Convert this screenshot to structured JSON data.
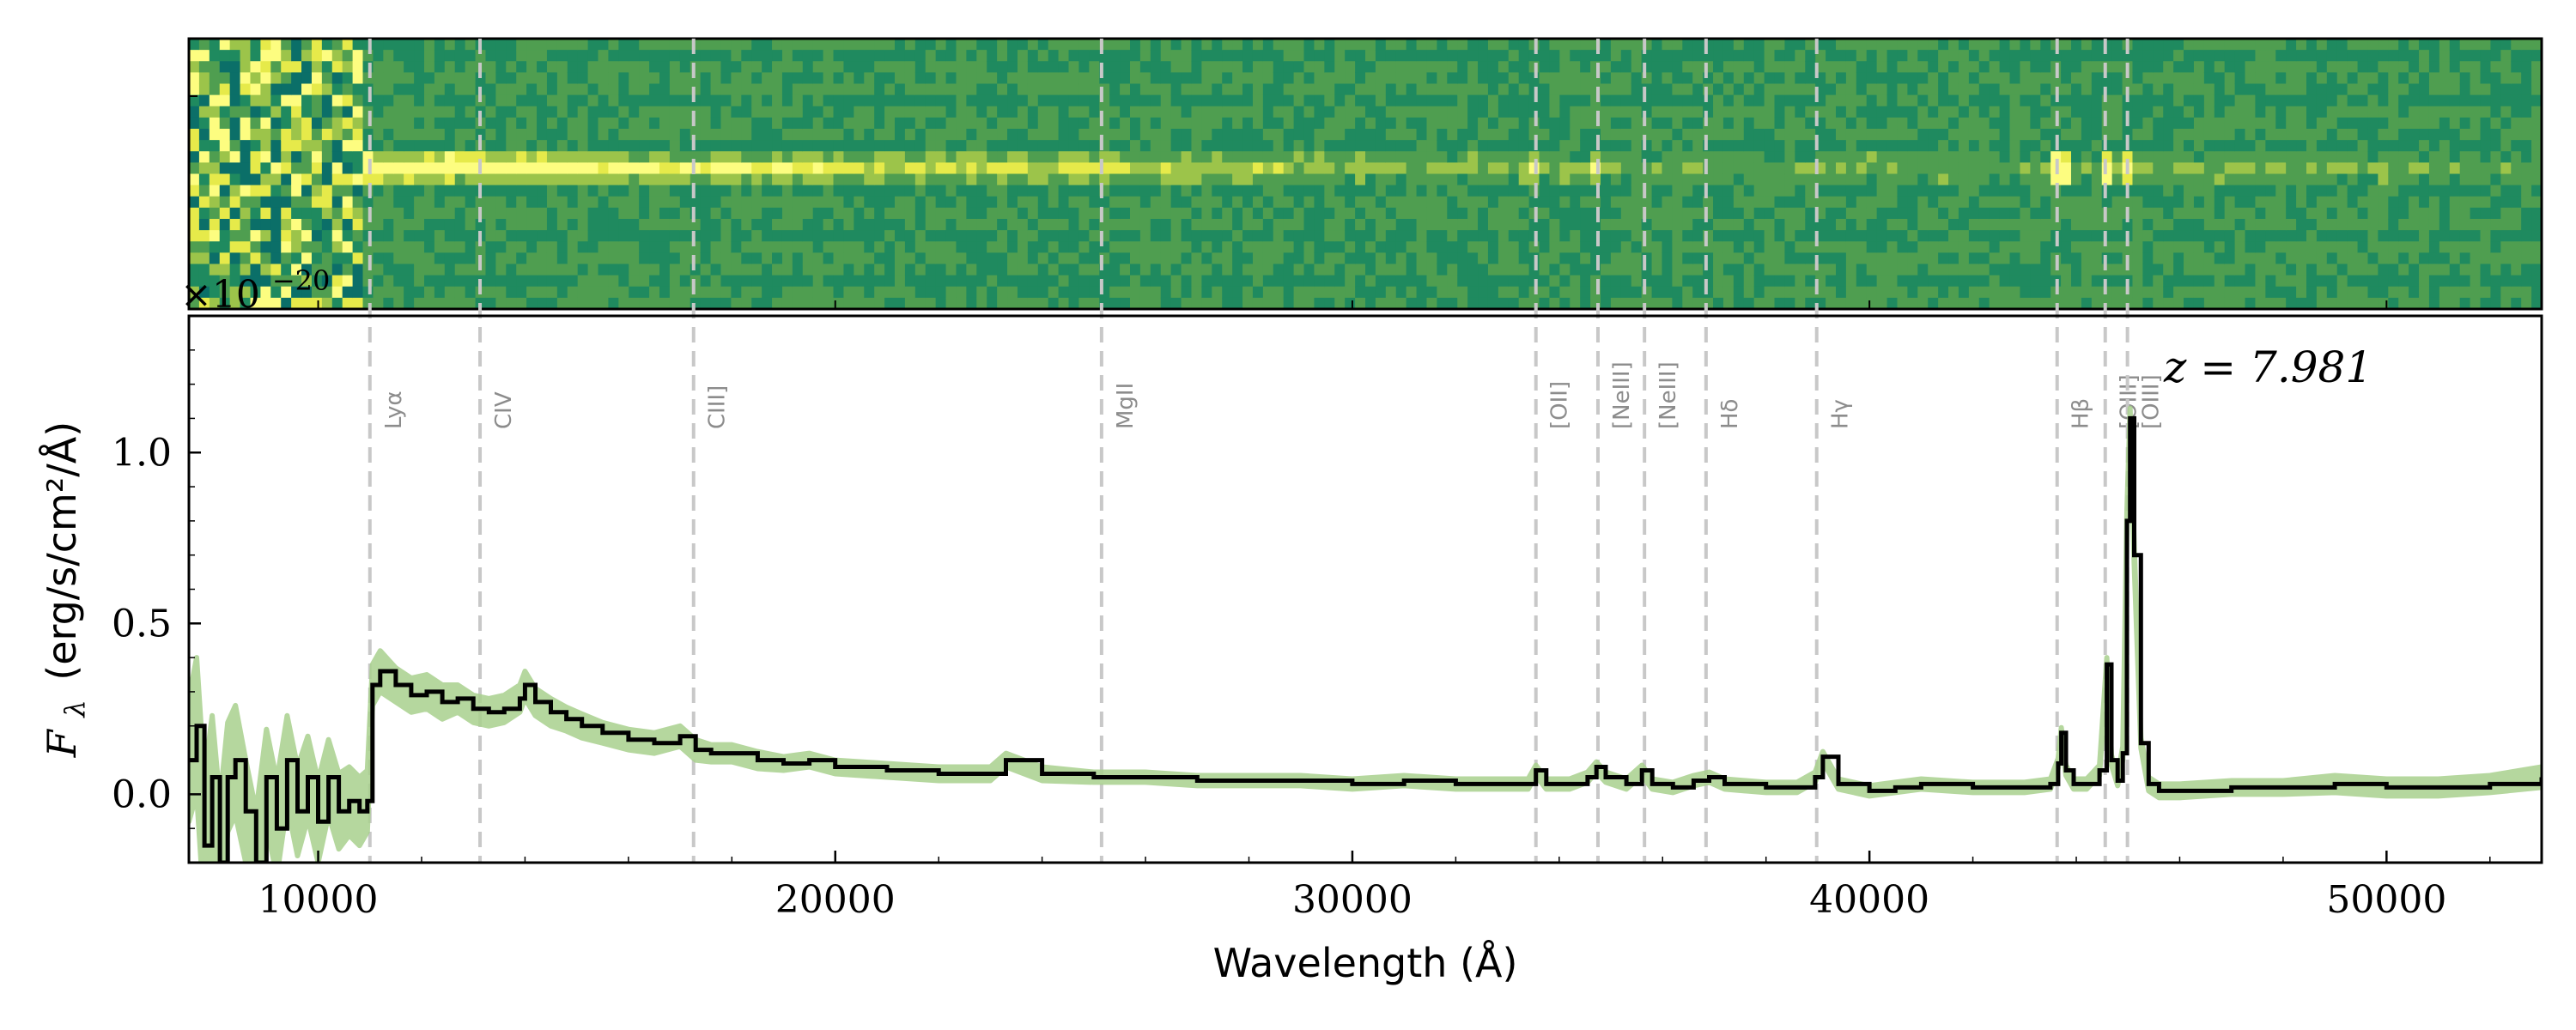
{
  "chart_data": [
    {
      "type": "heatmap",
      "panel": "2d-spectrum",
      "title": "",
      "colormap": [
        "#0b6f68",
        "#1f8a5f",
        "#4f9e50",
        "#9cc44a",
        "#e6ea4a",
        "#fdfd80"
      ],
      "xlim": [
        7500,
        53000
      ],
      "trace_row_fraction": 0.45,
      "bright_features_angstrom": [
        11000,
        12500,
        33550,
        34720,
        43710,
        44590,
        45040
      ],
      "offset_scale_text": "×10",
      "offset_scale_exp": "−20"
    },
    {
      "type": "line",
      "panel": "1d-spectrum",
      "title": "",
      "xlabel": "Wavelength (Å)",
      "ylabel_symbol": "F",
      "ylabel_sub": "λ",
      "ylabel_units": "(erg/s/cm²/Å)",
      "xlim": [
        7500,
        53000
      ],
      "ylim": [
        -0.2,
        1.4
      ],
      "xticks": [
        10000,
        20000,
        30000,
        40000,
        50000
      ],
      "xtick_labels": [
        "10000",
        "20000",
        "30000",
        "40000",
        "50000"
      ],
      "yticks": [
        0.0,
        0.5,
        1.0
      ],
      "ytick_labels": [
        "0.0",
        "0.5",
        "1.0"
      ],
      "grid": false,
      "redshift_label": "z = 7.981",
      "series": [
        {
          "color": "#000000",
          "x": [
            7500,
            7650,
            7800,
            7950,
            8100,
            8250,
            8400,
            8600,
            8800,
            9000,
            9200,
            9400,
            9600,
            9800,
            10000,
            10200,
            10400,
            10600,
            10800,
            10950,
            11050,
            11200,
            11500,
            11800,
            12100,
            12400,
            12700,
            13000,
            13300,
            13600,
            13900,
            14000,
            14200,
            14500,
            14800,
            15100,
            15500,
            16000,
            16500,
            17000,
            17300,
            17600,
            18000,
            18500,
            19000,
            19500,
            20000,
            21000,
            22000,
            23000,
            23300,
            24000,
            25000,
            26000,
            27000,
            28000,
            29000,
            30000,
            31000,
            32000,
            33000,
            33400,
            33550,
            33750,
            34200,
            34550,
            34720,
            34900,
            35300,
            35600,
            35800,
            36200,
            36600,
            36900,
            37200,
            38000,
            38600,
            38950,
            39100,
            39400,
            40000,
            40500,
            41000,
            42000,
            43000,
            43500,
            43650,
            43710,
            43800,
            43950,
            44200,
            44450,
            44590,
            44680,
            44800,
            44900,
            44980,
            45040,
            45120,
            45250,
            45400,
            45600,
            46000,
            47000,
            48000,
            49000,
            50000,
            51000,
            52000,
            53000
          ],
          "y": [
            0.1,
            0.2,
            -0.15,
            0.05,
            -0.2,
            0.05,
            0.1,
            -0.05,
            -0.2,
            0.05,
            -0.1,
            0.1,
            -0.05,
            0.05,
            -0.08,
            0.05,
            -0.05,
            -0.02,
            -0.05,
            -0.02,
            0.32,
            0.36,
            0.32,
            0.29,
            0.3,
            0.27,
            0.28,
            0.25,
            0.24,
            0.25,
            0.28,
            0.32,
            0.27,
            0.24,
            0.22,
            0.2,
            0.18,
            0.16,
            0.15,
            0.17,
            0.13,
            0.12,
            0.12,
            0.1,
            0.09,
            0.1,
            0.08,
            0.07,
            0.06,
            0.06,
            0.1,
            0.06,
            0.05,
            0.05,
            0.04,
            0.04,
            0.04,
            0.03,
            0.04,
            0.03,
            0.03,
            0.03,
            0.07,
            0.03,
            0.03,
            0.05,
            0.08,
            0.05,
            0.03,
            0.07,
            0.03,
            0.02,
            0.04,
            0.05,
            0.03,
            0.02,
            0.02,
            0.05,
            0.11,
            0.03,
            0.01,
            0.02,
            0.03,
            0.02,
            0.02,
            0.03,
            0.09,
            0.18,
            0.07,
            0.03,
            0.03,
            0.07,
            0.38,
            0.1,
            0.04,
            0.12,
            0.8,
            1.1,
            0.7,
            0.15,
            0.03,
            0.01,
            0.01,
            0.02,
            0.02,
            0.03,
            0.02,
            0.02,
            0.03,
            0.05
          ]
        }
      ],
      "error_band_color": "#a9d18e",
      "error_halfwidth": [
        0.18,
        0.2,
        0.2,
        0.18,
        0.18,
        0.16,
        0.16,
        0.15,
        0.15,
        0.14,
        0.14,
        0.13,
        0.13,
        0.12,
        0.12,
        0.11,
        0.11,
        0.1,
        0.1,
        0.09,
        0.06,
        0.06,
        0.05,
        0.05,
        0.05,
        0.05,
        0.04,
        0.04,
        0.04,
        0.04,
        0.04,
        0.04,
        0.04,
        0.04,
        0.035,
        0.035,
        0.03,
        0.03,
        0.03,
        0.03,
        0.03,
        0.025,
        0.025,
        0.025,
        0.02,
        0.02,
        0.02,
        0.02,
        0.02,
        0.02,
        0.02,
        0.02,
        0.015,
        0.015,
        0.015,
        0.015,
        0.015,
        0.015,
        0.015,
        0.015,
        0.015,
        0.015,
        0.015,
        0.015,
        0.015,
        0.015,
        0.015,
        0.015,
        0.015,
        0.015,
        0.015,
        0.015,
        0.015,
        0.015,
        0.015,
        0.015,
        0.015,
        0.015,
        0.015,
        0.015,
        0.015,
        0.015,
        0.015,
        0.015,
        0.015,
        0.015,
        0.015,
        0.015,
        0.015,
        0.015,
        0.015,
        0.015,
        0.02,
        0.015,
        0.015,
        0.02,
        0.03,
        0.03,
        0.03,
        0.015,
        0.02,
        0.02,
        0.02,
        0.02,
        0.02,
        0.025,
        0.025,
        0.025,
        0.025,
        0.03
      ],
      "annotations": [
        {
          "x": 11000,
          "label": "Lyα"
        },
        {
          "x": 13130,
          "label": "CIV"
        },
        {
          "x": 17260,
          "label": "CIII]"
        },
        {
          "x": 25150,
          "label": "MgII"
        },
        {
          "x": 33550,
          "label": "[OII]"
        },
        {
          "x": 34750,
          "label": "[NeIII]"
        },
        {
          "x": 35650,
          "label": "[NeIII]"
        },
        {
          "x": 36840,
          "label": "Hδ"
        },
        {
          "x": 38980,
          "label": "Hγ"
        },
        {
          "x": 43630,
          "label": "Hβ"
        },
        {
          "x": 44560,
          "label": "[OIII]"
        },
        {
          "x": 44990,
          "label": "[OIII]"
        }
      ]
    }
  ]
}
